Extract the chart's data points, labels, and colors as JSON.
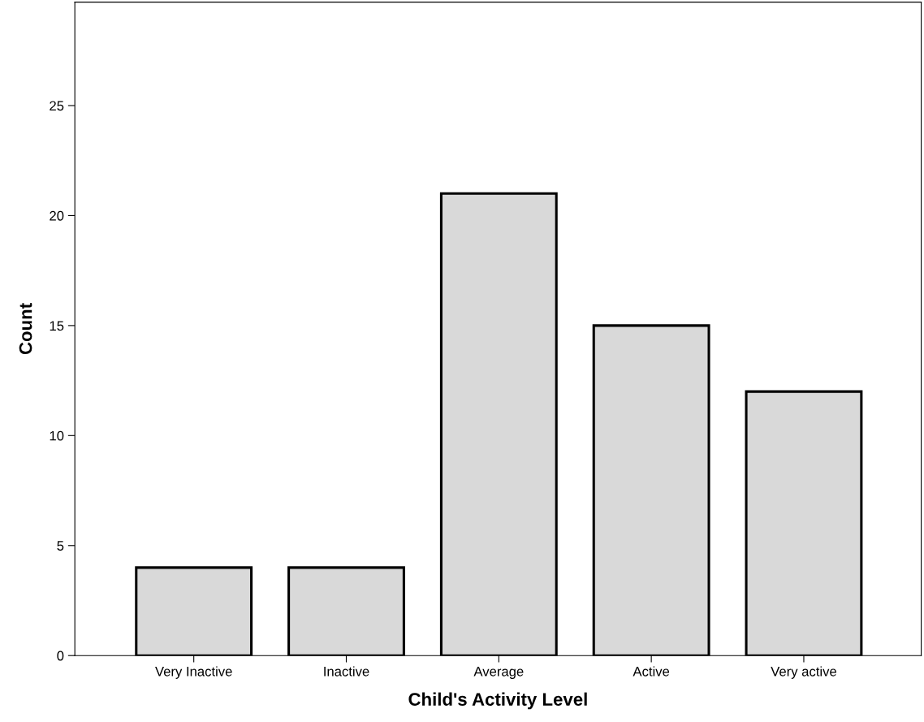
{
  "chart_data": {
    "type": "bar",
    "xlabel": "Child's Activity Level",
    "ylabel": "Count",
    "categories": [
      "Very Inactive",
      "Inactive",
      "Average",
      "Active",
      "Very active"
    ],
    "values": [
      4,
      4,
      21,
      15,
      12
    ],
    "color": "#d9d9d9",
    "ylim": [
      0,
      29.7
    ],
    "yticks": [
      0,
      5,
      10,
      15,
      20,
      25
    ],
    "grid": false
  }
}
